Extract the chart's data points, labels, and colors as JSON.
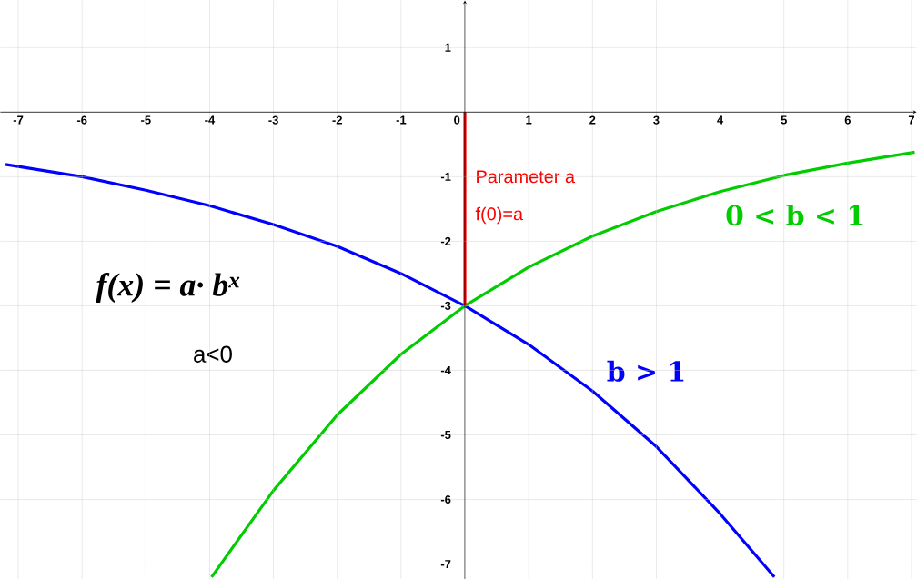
{
  "chart_data": {
    "type": "line",
    "series": [
      {
        "name": "b > 1",
        "color": "#0000ff",
        "x": [
          -7.2,
          -6,
          -5,
          -4,
          -3,
          -2,
          -1,
          0,
          1,
          2,
          3,
          4,
          4.85
        ],
        "values": [
          -0.81,
          -1.0,
          -1.21,
          -1.45,
          -1.74,
          -2.08,
          -2.5,
          -3,
          -3.6,
          -4.32,
          -5.18,
          -6.22,
          -7.2
        ]
      },
      {
        "name": "0 < b < 1",
        "color": "#00cc00",
        "x": [
          -3.97,
          -3,
          -2,
          -1,
          0,
          1,
          2,
          3,
          4,
          5,
          6,
          7.05
        ],
        "values": [
          -7.2,
          -5.86,
          -4.69,
          -3.75,
          -3,
          -2.4,
          -1.92,
          -1.54,
          -1.23,
          -0.98,
          -0.79,
          -0.62
        ]
      },
      {
        "color": "#ff0000",
        "x": [
          0,
          0
        ],
        "values": [
          0,
          -3
        ]
      }
    ],
    "annotations": [
      {
        "text": "Parameter a",
        "x": 0,
        "y": -1
      },
      {
        "text": "f(0)=a",
        "x": 0,
        "y": -1.6
      },
      "f(x) = a· b$^{x}$",
      "a<0"
    ],
    "xlim": [
      -7.28,
      7.08
    ],
    "ylim": [
      -7.23,
      1.73
    ],
    "xticks": [
      -7,
      -6,
      -5,
      -4,
      -3,
      -2,
      -1,
      0,
      1,
      2,
      3,
      4,
      5,
      6,
      7
    ],
    "yticks": [
      -7,
      -6,
      -5,
      -4,
      -3,
      -2,
      -1,
      1
    ],
    "grid": true,
    "marker": "none",
    "line_style": "solid"
  }
}
